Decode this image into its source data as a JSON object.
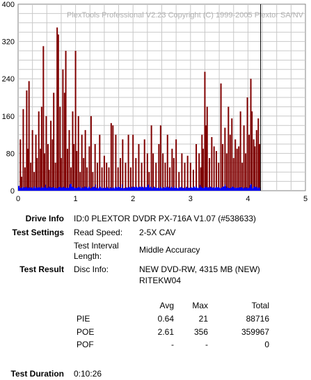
{
  "chart_data": {
    "type": "bar",
    "watermark": "PlexTools Professional V2.23 Copyright (C) 1999-2005 Plextor SA/NV",
    "xlim": [
      0,
      5
    ],
    "ylim": [
      0,
      400
    ],
    "x_ticks": [
      0,
      1,
      2,
      3,
      4,
      5
    ],
    "y_ticks": [
      0,
      80,
      160,
      240,
      320,
      400
    ],
    "marker_x": 4.22,
    "grid": true,
    "series": [
      {
        "color": "#800000",
        "values": [
          [
            0.04,
            110
          ],
          [
            0.06,
            30
          ],
          [
            0.09,
            175
          ],
          [
            0.12,
            50
          ],
          [
            0.15,
            215
          ],
          [
            0.17,
            90
          ],
          [
            0.19,
            235
          ],
          [
            0.22,
            60
          ],
          [
            0.25,
            130
          ],
          [
            0.28,
            40
          ],
          [
            0.31,
            120
          ],
          [
            0.33,
            70
          ],
          [
            0.36,
            170
          ],
          [
            0.39,
            90
          ],
          [
            0.41,
            180
          ],
          [
            0.44,
            310
          ],
          [
            0.46,
            80
          ],
          [
            0.49,
            160
          ],
          [
            0.52,
            100
          ],
          [
            0.54,
            45
          ],
          [
            0.57,
            150
          ],
          [
            0.6,
            110
          ],
          [
            0.62,
            210
          ],
          [
            0.65,
            60
          ],
          [
            0.68,
            350
          ],
          [
            0.7,
            335
          ],
          [
            0.73,
            180
          ],
          [
            0.75,
            70
          ],
          [
            0.78,
            260
          ],
          [
            0.81,
            210
          ],
          [
            0.83,
            300
          ],
          [
            0.86,
            90
          ],
          [
            0.89,
            130
          ],
          [
            0.92,
            50
          ],
          [
            0.95,
            170
          ],
          [
            0.97,
            100
          ],
          [
            1.0,
            300
          ],
          [
            1.02,
            85
          ],
          [
            1.05,
            160
          ],
          [
            1.08,
            40
          ],
          [
            1.11,
            120
          ],
          [
            1.14,
            70
          ],
          [
            1.17,
            130
          ],
          [
            1.2,
            50
          ],
          [
            1.24,
            95
          ],
          [
            1.27,
            160
          ],
          [
            1.3,
            40
          ],
          [
            1.34,
            100
          ],
          [
            1.38,
            60
          ],
          [
            1.42,
            120
          ],
          [
            1.46,
            50
          ],
          [
            1.5,
            75
          ],
          [
            1.54,
            60
          ],
          [
            1.58,
            50
          ],
          [
            1.62,
            145
          ],
          [
            1.65,
            140
          ],
          [
            1.7,
            120
          ],
          [
            1.74,
            50
          ],
          [
            1.78,
            70
          ],
          [
            1.82,
            110
          ],
          [
            1.87,
            60
          ],
          [
            1.92,
            120
          ],
          [
            1.96,
            50
          ],
          [
            2.0,
            120
          ],
          [
            2.05,
            70
          ],
          [
            2.1,
            100
          ],
          [
            2.15,
            60
          ],
          [
            2.2,
            110
          ],
          [
            2.25,
            80
          ],
          [
            2.28,
            40
          ],
          [
            2.32,
            140
          ],
          [
            2.35,
            80
          ],
          [
            2.4,
            60
          ],
          [
            2.45,
            100
          ],
          [
            2.48,
            140
          ],
          [
            2.52,
            80
          ],
          [
            2.56,
            60
          ],
          [
            2.6,
            120
          ],
          [
            2.64,
            50
          ],
          [
            2.68,
            90
          ],
          [
            2.71,
            70
          ],
          [
            2.75,
            110
          ],
          [
            2.8,
            40
          ],
          [
            2.85,
            80
          ],
          [
            2.9,
            60
          ],
          [
            2.95,
            75
          ],
          [
            3.0,
            60
          ],
          [
            3.05,
            45
          ],
          [
            3.1,
            100
          ],
          [
            3.15,
            80
          ],
          [
            3.18,
            50
          ],
          [
            3.2,
            120
          ],
          [
            3.22,
            90
          ],
          [
            3.25,
            255
          ],
          [
            3.27,
            140
          ],
          [
            3.29,
            180
          ],
          [
            3.33,
            70
          ],
          [
            3.37,
            115
          ],
          [
            3.41,
            95
          ],
          [
            3.45,
            85
          ],
          [
            3.49,
            60
          ],
          [
            3.53,
            230
          ],
          [
            3.56,
            100
          ],
          [
            3.6,
            135
          ],
          [
            3.63,
            80
          ],
          [
            3.66,
            180
          ],
          [
            3.69,
            120
          ],
          [
            3.72,
            155
          ],
          [
            3.75,
            70
          ],
          [
            3.78,
            110
          ],
          [
            3.81,
            90
          ],
          [
            3.84,
            95
          ],
          [
            3.87,
            170
          ],
          [
            3.9,
            60
          ],
          [
            3.93,
            140
          ],
          [
            3.96,
            80
          ],
          [
            3.99,
            200
          ],
          [
            4.02,
            120
          ],
          [
            4.05,
            240
          ],
          [
            4.07,
            170
          ],
          [
            4.1,
            110
          ],
          [
            4.12,
            95
          ],
          [
            4.15,
            130
          ],
          [
            4.18,
            155
          ],
          [
            4.2,
            100
          ]
        ]
      },
      {
        "color": "#0000ff",
        "x_range": [
          0,
          4.22
        ],
        "baseline": 5,
        "spike_max": 15
      }
    ]
  },
  "labels": {
    "drive_info": "Drive Info",
    "test_settings": "Test Settings",
    "test_result": "Test Result",
    "test_duration": "Test Duration"
  },
  "drive_info": "ID:0 PLEXTOR DVDR PX-716A V1.07 (#538633)",
  "read_speed_label": "Read Speed:",
  "read_speed": "2-5X CAV",
  "interval_label_line1": "Test Interval",
  "interval_label_line2": "Length:",
  "interval": "Middle Accuracy",
  "disc_info_label": "Disc Info:",
  "disc_info_line1": "NEW DVD-RW, 4315 MB (NEW)",
  "disc_info_line2": "RITEKW04",
  "table": {
    "headers": [
      "Avg",
      "Max",
      "Total"
    ],
    "rows": [
      {
        "name": "PIE",
        "avg": "0.64",
        "max": "21",
        "total": "88716"
      },
      {
        "name": "POE",
        "avg": "2.61",
        "max": "356",
        "total": "359967"
      },
      {
        "name": "POF",
        "avg": "-",
        "max": "-",
        "total": "0"
      }
    ]
  },
  "duration": "0:10:26"
}
